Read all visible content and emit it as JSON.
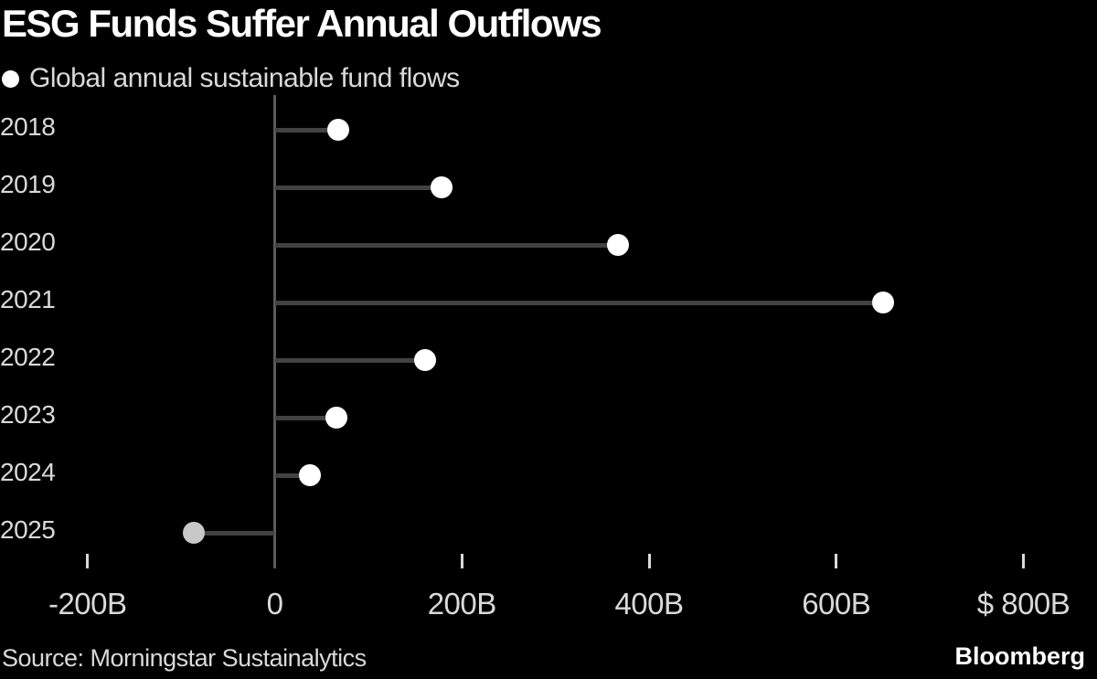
{
  "chart_data": {
    "type": "bar",
    "style": "horizontal-lollipop",
    "title": "ESG Funds Suffer Annual Outflows",
    "legend_label": "Global annual sustainable fund flows",
    "unit": "billions of US dollars",
    "categories": [
      "2018",
      "2019",
      "2020",
      "2021",
      "2022",
      "2023",
      "2024",
      "2025"
    ],
    "values": [
      68,
      178,
      367,
      650,
      161,
      66,
      38,
      -86
    ],
    "point_colors": [
      "#ffffff",
      "#ffffff",
      "#ffffff",
      "#ffffff",
      "#ffffff",
      "#ffffff",
      "#ffffff",
      "#c8c8c8"
    ],
    "xlim": [
      -290,
      875
    ],
    "x_ticks": [
      {
        "value": -200,
        "label": "-200B",
        "show_mark": true
      },
      {
        "value": 0,
        "label": "0",
        "show_mark": false
      },
      {
        "value": 200,
        "label": "200B",
        "show_mark": true
      },
      {
        "value": 400,
        "label": "400B",
        "show_mark": true
      },
      {
        "value": 600,
        "label": "600B",
        "show_mark": true
      },
      {
        "value": 800,
        "label": "$ 800B",
        "show_mark": true
      }
    ],
    "grid": "none",
    "legend_position": "top-left",
    "colors": {
      "background": "#000000",
      "title": "#ffffff",
      "text": "#d9d9d9",
      "dot": "#ffffff",
      "dot_latest": "#c8c8c8",
      "stem": "#424242",
      "zero_axis": "#5a5a5a",
      "tick": "#d9d9d9"
    }
  },
  "footer": {
    "source": "Source: Morningstar Sustainalytics",
    "brand": "Bloomberg"
  }
}
